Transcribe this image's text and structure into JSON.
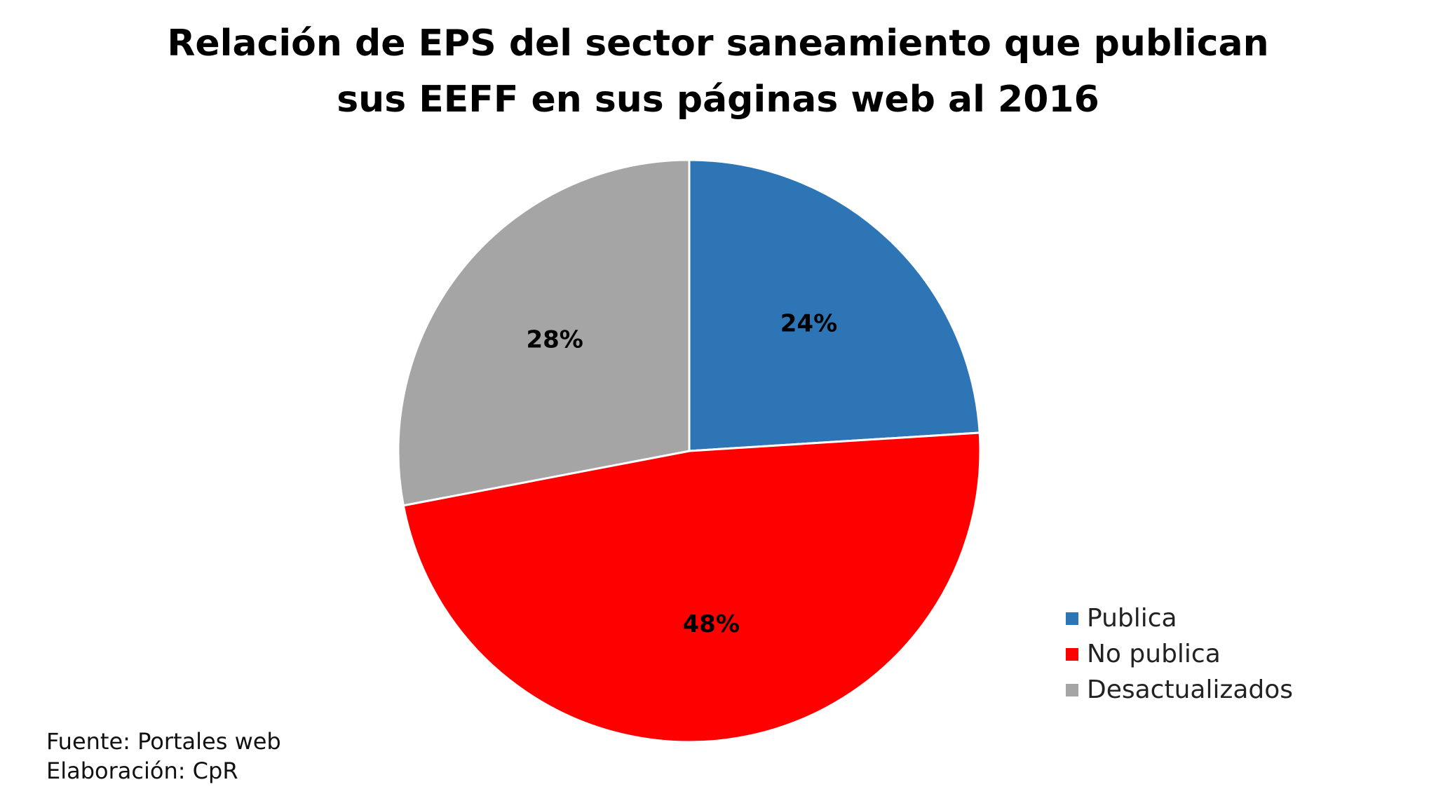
{
  "chart_data": {
    "type": "pie",
    "title_lines": [
      "Relación de EPS del sector saneamiento que publican",
      "sus EEFF en sus páginas web al 2016"
    ],
    "slices": [
      {
        "label": "Publica",
        "value": 24,
        "display": "24%",
        "color": "#2E75B6"
      },
      {
        "label": "No publica",
        "value": 48,
        "display": "48%",
        "color": "#FF0000"
      },
      {
        "label": "Desactualizados",
        "value": 28,
        "display": "28%",
        "color": "#A5A5A5"
      }
    ],
    "start_angle_deg": 0,
    "direction": "clockwise",
    "legend_position": "bottom-right"
  },
  "footnote": {
    "source": "Fuente: Portales web",
    "author": "Elaboración: CpR"
  }
}
